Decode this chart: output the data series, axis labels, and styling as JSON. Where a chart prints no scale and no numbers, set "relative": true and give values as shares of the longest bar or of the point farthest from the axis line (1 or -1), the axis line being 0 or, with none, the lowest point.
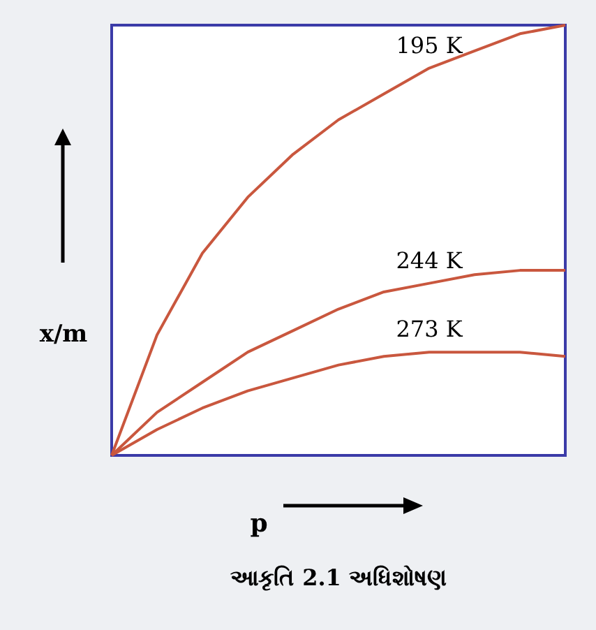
{
  "chart_data": {
    "type": "line",
    "title": "આકૃતિ 2.1 અધિશોષણ",
    "xlabel": "p",
    "ylabel": "x/m",
    "relative": true,
    "grid": false,
    "marker": "none",
    "line_style": "solid",
    "categories": [
      null,
      null,
      null,
      null,
      null,
      null,
      null,
      null,
      null,
      null,
      null
    ],
    "series": [
      {
        "name": "195 K",
        "color": "#c9573e",
        "values": [
          0,
          0.28,
          0.47,
          0.6,
          0.7,
          0.78,
          0.84,
          0.9,
          0.94,
          0.98,
          1
        ]
      },
      {
        "name": "244 K",
        "color": "#c9573e",
        "values": [
          0,
          0.1,
          0.17,
          0.24,
          0.29,
          0.34,
          0.38,
          0.4,
          0.42,
          0.43,
          0.43
        ]
      },
      {
        "name": "273 K",
        "color": "#c9573e",
        "values": [
          0,
          0.06,
          0.11,
          0.15,
          0.18,
          0.21,
          0.23,
          0.24,
          0.24,
          0.24,
          0.23
        ]
      }
    ]
  }
}
